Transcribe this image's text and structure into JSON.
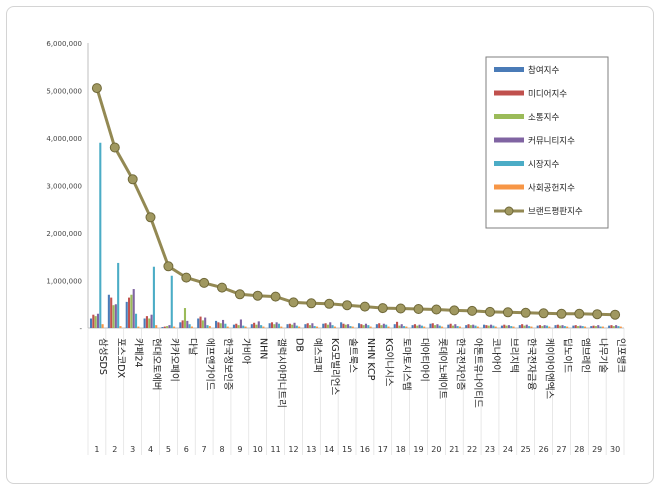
{
  "chart_data": {
    "type": "bar",
    "title": "",
    "xlabel": "",
    "ylabel": "",
    "ylim": [
      0,
      6000000
    ],
    "y_ticks": [
      "-",
      "1,000,000",
      "2,000,000",
      "3,000,000",
      "4,000,000",
      "5,000,000",
      "6,000,000"
    ],
    "grid": false,
    "legend_position": "top-right",
    "categories": [
      "삼성SDS",
      "포스코DX",
      "카페24",
      "현대오토에버",
      "카카오페이",
      "다날",
      "에프앤가이드",
      "한국정보인증",
      "가비아",
      "NHN",
      "갤럭시아머니트리",
      "DB",
      "예스코퍼",
      "KG모빌리언스",
      "솔트룩스",
      "NHN KCP",
      "KG이니시스",
      "토마토시스템",
      "대아티아이",
      "롯데이노베이트",
      "한국전자인증",
      "아톤트유나이티드",
      "코나아이",
      "브리지텍",
      "한국전자금융",
      "케이아이엔엑스",
      "딥노이드",
      "엠브레인",
      "나무기술",
      "인포뱅크"
    ],
    "category_numbers": [
      "1",
      "2",
      "3",
      "4",
      "5",
      "6",
      "7",
      "8",
      "9",
      "10",
      "11",
      "12",
      "13",
      "14",
      "15",
      "16",
      "17",
      "18",
      "19",
      "20",
      "21",
      "22",
      "23",
      "24",
      "25",
      "26",
      "27",
      "28",
      "29",
      "30"
    ],
    "series": [
      {
        "name": "참여지수",
        "kind": "bar",
        "color": "#4a7bb7",
        "values": [
          200000,
          700000,
          550000,
          200000,
          20000,
          120000,
          200000,
          150000,
          70000,
          80000,
          100000,
          80000,
          80000,
          90000,
          120000,
          100000,
          80000,
          80000,
          60000,
          90000,
          70000,
          60000,
          70000,
          50000,
          60000,
          50000,
          60000,
          50000,
          40000,
          50000
        ]
      },
      {
        "name": "미디어지수",
        "kind": "bar",
        "color": "#c0504d",
        "values": [
          280000,
          640000,
          640000,
          250000,
          30000,
          160000,
          240000,
          120000,
          90000,
          110000,
          120000,
          90000,
          100000,
          100000,
          90000,
          80000,
          100000,
          130000,
          80000,
          100000,
          90000,
          80000,
          60000,
          70000,
          80000,
          60000,
          70000,
          60000,
          50000,
          60000
        ]
      },
      {
        "name": "소통지수",
        "kind": "bar",
        "color": "#9bbb59",
        "values": [
          250000,
          480000,
          700000,
          200000,
          40000,
          420000,
          160000,
          100000,
          60000,
          70000,
          80000,
          70000,
          60000,
          70000,
          70000,
          60000,
          60000,
          50000,
          50000,
          60000,
          50000,
          60000,
          50000,
          50000,
          50000,
          40000,
          50000,
          40000,
          40000,
          40000
        ]
      },
      {
        "name": "커뮤니티지수",
        "kind": "bar",
        "color": "#8064a2",
        "values": [
          300000,
          500000,
          820000,
          280000,
          60000,
          150000,
          220000,
          170000,
          180000,
          140000,
          120000,
          110000,
          100000,
          120000,
          80000,
          90000,
          90000,
          80000,
          70000,
          80000,
          80000,
          70000,
          70000,
          60000,
          70000,
          60000,
          60000,
          50000,
          60000,
          60000
        ]
      },
      {
        "name": "시장지수",
        "kind": "bar",
        "color": "#4bacc6",
        "values": [
          3900000,
          1370000,
          300000,
          1290000,
          1100000,
          80000,
          60000,
          90000,
          50000,
          60000,
          90000,
          50000,
          40000,
          60000,
          40000,
          60000,
          70000,
          40000,
          50000,
          50000,
          40000,
          50000,
          50000,
          40000,
          40000,
          50000,
          40000,
          40000,
          30000,
          40000
        ]
      },
      {
        "name": "사회공헌지수",
        "kind": "bar",
        "color": "#f79646",
        "values": [
          80000,
          40000,
          30000,
          60000,
          30000,
          30000,
          40000,
          30000,
          30000,
          30000,
          30000,
          30000,
          30000,
          30000,
          30000,
          30000,
          30000,
          30000,
          30000,
          30000,
          30000,
          30000,
          30000,
          30000,
          30000,
          30000,
          30000,
          30000,
          30000,
          30000
        ]
      },
      {
        "name": "브랜드평판지수",
        "kind": "line",
        "color": "#938953",
        "values": [
          5050000,
          3800000,
          3130000,
          2330000,
          1300000,
          1060000,
          950000,
          850000,
          710000,
          680000,
          660000,
          540000,
          520000,
          510000,
          480000,
          450000,
          420000,
          410000,
          400000,
          390000,
          370000,
          360000,
          340000,
          330000,
          320000,
          310000,
          300000,
          300000,
          290000,
          280000
        ]
      }
    ]
  }
}
